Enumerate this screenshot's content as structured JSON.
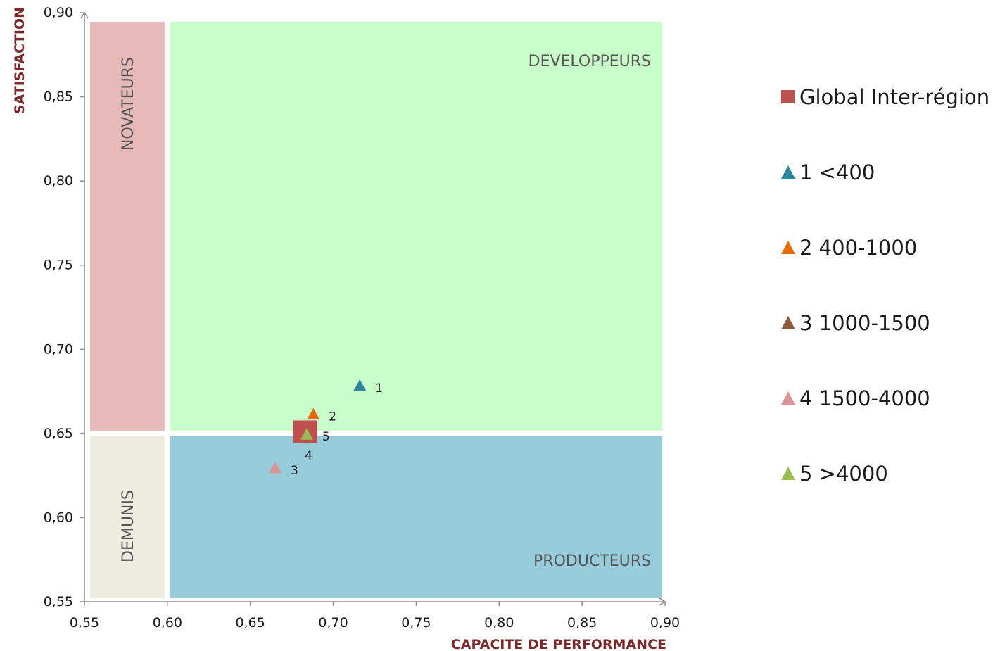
{
  "chart_data": {
    "type": "scatter",
    "xlabel": "CAPACITE DE PERFORMANCE",
    "ylabel": "SATISFACTION",
    "xlim": [
      0.55,
      0.9
    ],
    "ylim": [
      0.55,
      0.9
    ],
    "x_ticks": [
      "0,55",
      "0,60",
      "0,65",
      "0,70",
      "0,75",
      "0,80",
      "0,85",
      "0,90"
    ],
    "y_ticks": [
      "0,55",
      "0,60",
      "0,65",
      "0,70",
      "0,75",
      "0,80",
      "0,85",
      "0,90"
    ],
    "x_tick_values": [
      0.55,
      0.6,
      0.65,
      0.7,
      0.75,
      0.8,
      0.85,
      0.9
    ],
    "y_tick_values": [
      0.55,
      0.6,
      0.65,
      0.7,
      0.75,
      0.8,
      0.85,
      0.9
    ],
    "grid": false,
    "legend_position": "right",
    "thresholds": {
      "x": 0.6,
      "y": 0.65
    },
    "quadrants": [
      {
        "name": "NOVATEURS",
        "x": [
          0.55,
          0.6
        ],
        "y": [
          0.65,
          0.9
        ],
        "color": "#e6b8b8"
      },
      {
        "name": "DEVELOPPEURS",
        "x": [
          0.6,
          0.9
        ],
        "y": [
          0.65,
          0.9
        ],
        "color": "#c8fcc8"
      },
      {
        "name": "DEMUNIS",
        "x": [
          0.55,
          0.6
        ],
        "y": [
          0.55,
          0.65
        ],
        "color": "#eeebe0"
      },
      {
        "name": "PRODUCTEURS",
        "x": [
          0.6,
          0.9
        ],
        "y": [
          0.55,
          0.65
        ],
        "color": "#96ccdc"
      }
    ],
    "series": [
      {
        "name": "Global Inter-région",
        "marker": "square",
        "color": "#c0504d",
        "points": [
          {
            "label": "",
            "x": 0.683,
            "y": 0.651
          }
        ]
      },
      {
        "name": "1 <400",
        "marker": "triangle",
        "color": "#31859c",
        "points": [
          {
            "label": "1",
            "x": 0.716,
            "y": 0.678
          }
        ]
      },
      {
        "name": "2 400-1000",
        "marker": "triangle",
        "color": "#e46c0a",
        "points": [
          {
            "label": "2",
            "x": 0.688,
            "y": 0.661
          }
        ]
      },
      {
        "name": "3 1000-1500",
        "marker": "triangle",
        "color": "#8b5a3c",
        "points": [
          {
            "label": "3",
            "x": 0.665,
            "y": 0.629
          }
        ]
      },
      {
        "name": "4 1500-4000",
        "marker": "triangle",
        "color": "#d99694",
        "points": [
          {
            "label": "4",
            "x": 0.665,
            "y": 0.629
          }
        ]
      },
      {
        "name": "5 >4000",
        "marker": "triangle",
        "color": "#9bbb59",
        "points": [
          {
            "label": "5",
            "x": 0.684,
            "y": 0.649
          }
        ]
      }
    ]
  }
}
